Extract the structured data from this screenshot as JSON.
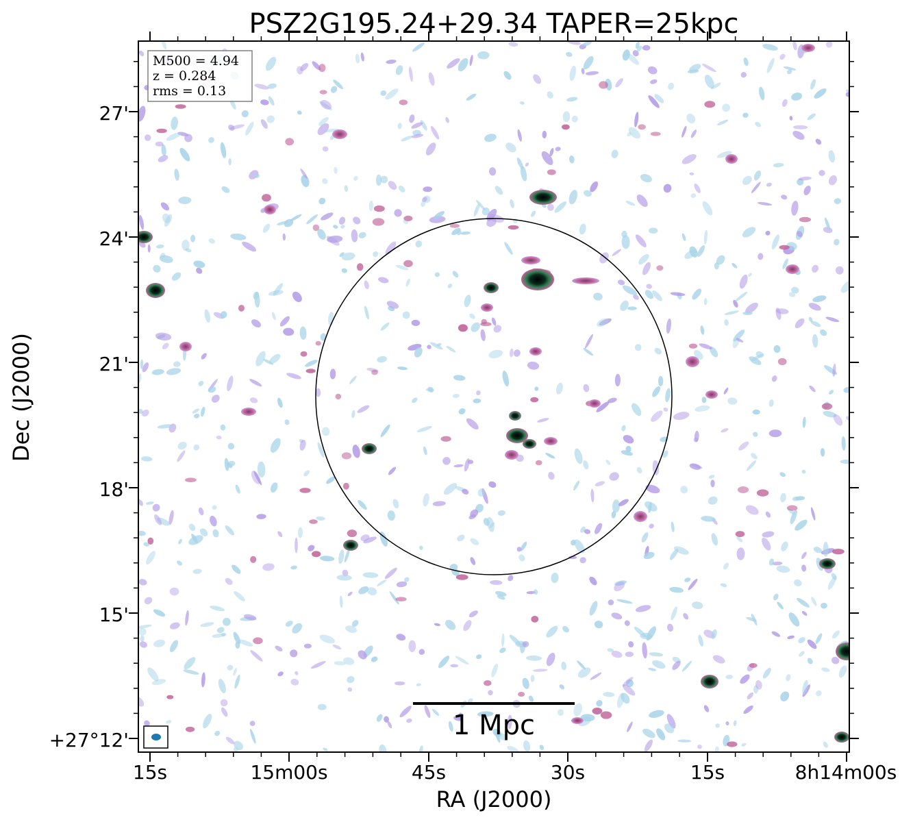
{
  "title": "PSZ2G195.24+29.34 TAPER=25kpc",
  "info_box": {
    "line1": "M500 = 4.94",
    "line2": "z = 0.284",
    "line3": "rms = 0.13"
  },
  "axes": {
    "xlabel": "RA (J2000)",
    "ylabel": "Dec (J2000)",
    "x_ticks": [
      "15s",
      "15m00s",
      "45s",
      "30s",
      "15s",
      "8h14m00s"
    ],
    "y_ticks": [
      "27'",
      "24'",
      "21'",
      "18'",
      "15'",
      "+27°12'"
    ]
  },
  "scale_bar": {
    "label": "1 Mpc"
  },
  "colors": {
    "noise_light": "#a8d4e8",
    "noise_purple": "#b39ce6",
    "source_pink": "#c0649a",
    "source_green": "#2e7d50",
    "source_core": "#000000",
    "beam": "#1f77b4"
  }
}
